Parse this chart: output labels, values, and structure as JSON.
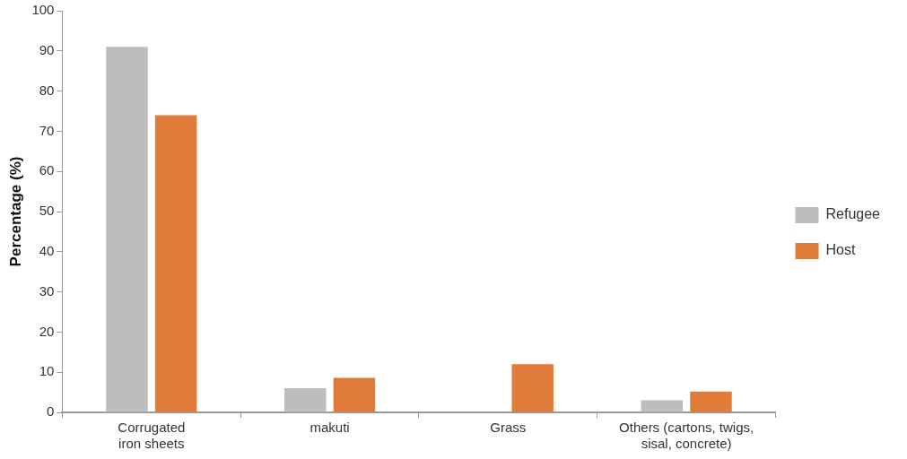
{
  "chart_data": {
    "type": "bar",
    "ylabel": "Percentage (%)",
    "categories": [
      "Corrugated\niron sheets",
      "makuti",
      "Grass",
      "Others (cartons, twigs,\nsisal, concrete)"
    ],
    "series": [
      {
        "name": "Refugee",
        "color": "#bdbdbf",
        "values": [
          91,
          6,
          0,
          3
        ]
      },
      {
        "name": "Host",
        "color": "#e07b39",
        "values": [
          74,
          8.6,
          12,
          5.2
        ]
      }
    ],
    "ylim": [
      0,
      100
    ],
    "yticks": [
      0,
      10,
      20,
      30,
      40,
      50,
      60,
      70,
      80,
      90,
      100
    ],
    "grid": false,
    "legend": "right"
  }
}
